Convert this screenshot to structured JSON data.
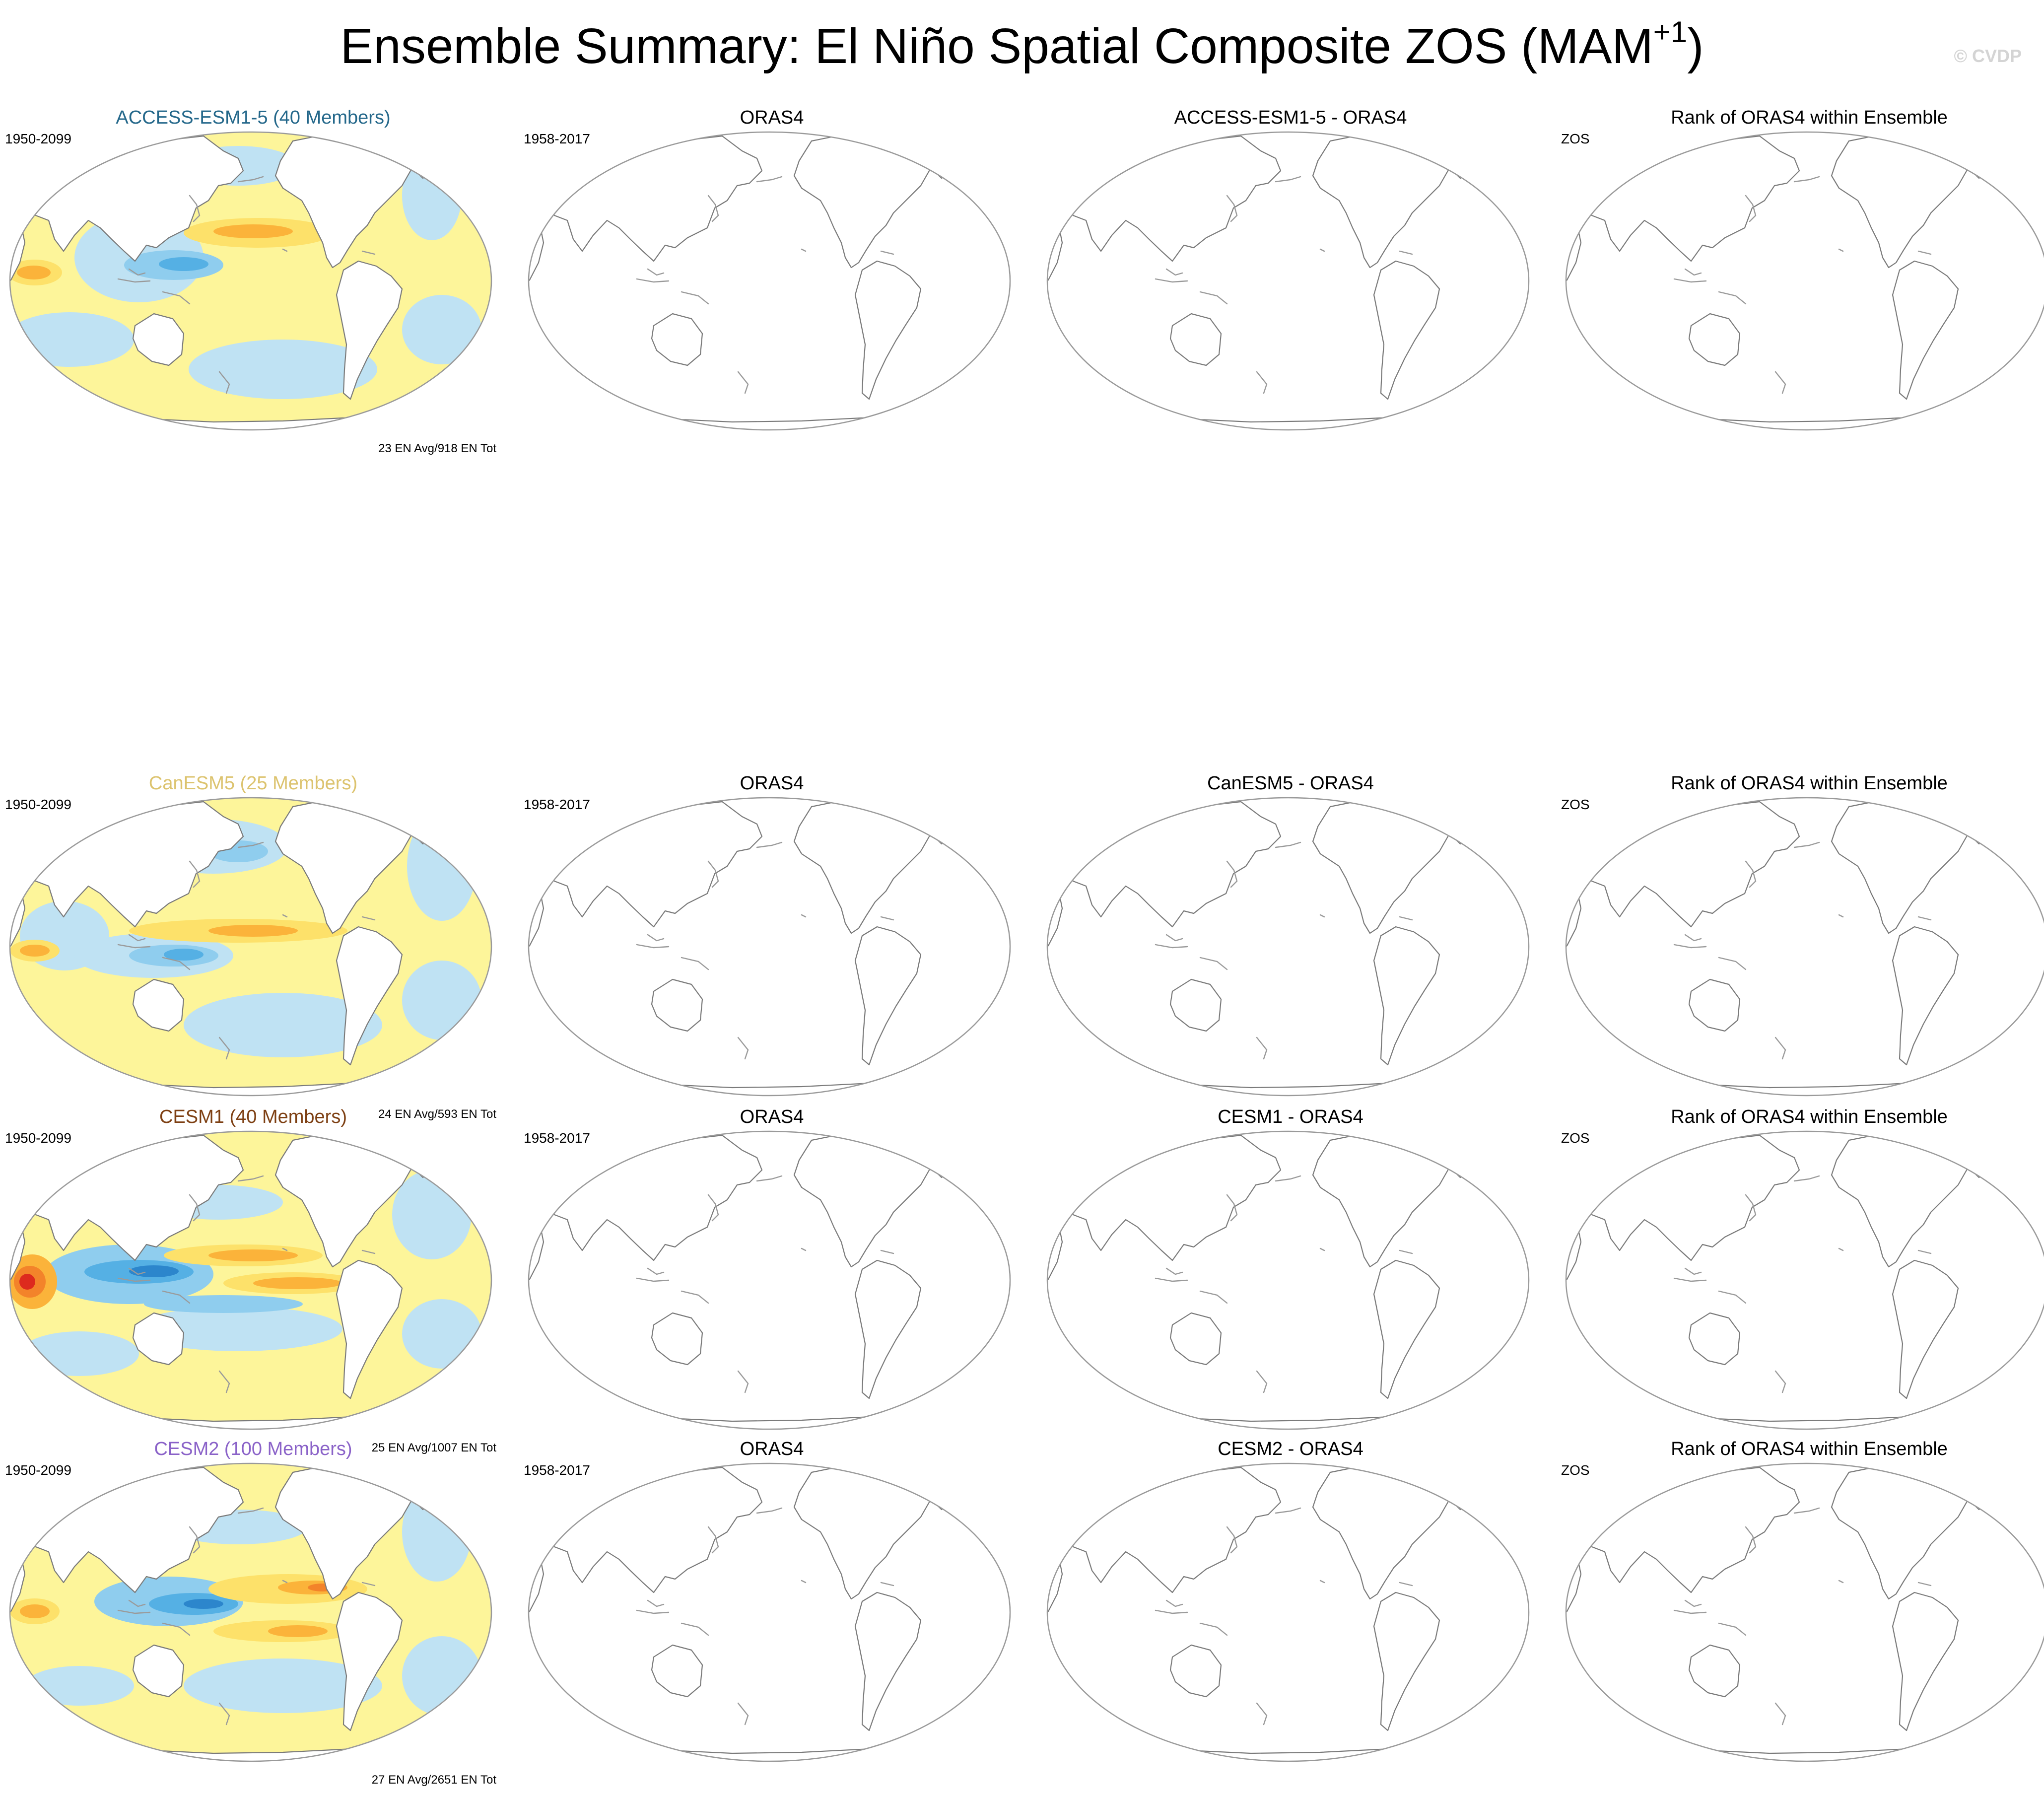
{
  "title": "Ensemble Summary: El Niño Spatial Composite ZOS (MAM",
  "title_sup": "+1",
  "title_close": ")",
  "watermark": "© CVDP",
  "palette": {
    "ocean_base": "#fdf59a",
    "pos1": "#fde16a",
    "pos2": "#fbb33a",
    "pos3": "#f3832a",
    "pos4": "#dd2a1e",
    "neg1": "#bfe2f3",
    "neg2": "#8fcdee",
    "neg3": "#55b0e4",
    "neg4": "#2c86cc",
    "coast": "#7a7a7a"
  },
  "rows": [
    {
      "model": {
        "title": "ACCESS-ESM1-5 (40 Members)",
        "title_color": "#23678a",
        "years": "1950-2099",
        "stat": "23 EN Avg/918 EN Tot",
        "style": "access"
      },
      "obs": {
        "title": "ORAS4",
        "years": "1958-2017"
      },
      "diff": {
        "title": "ACCESS-ESM1-5 - ORAS4"
      },
      "rank": {
        "title": "Rank of ORAS4 within Ensemble",
        "label": "ZOS"
      }
    },
    {
      "model": {
        "title": "CanESM5 (25 Members)",
        "title_color": "#dcc36e",
        "years": "1950-2099",
        "stat": "24 EN Avg/593 EN Tot",
        "style": "canesm"
      },
      "obs": {
        "title": "ORAS4",
        "years": "1958-2017"
      },
      "diff": {
        "title": "CanESM5 - ORAS4"
      },
      "rank": {
        "title": "Rank of ORAS4 within Ensemble",
        "label": "ZOS"
      }
    },
    {
      "model": {
        "title": "CESM1 (40 Members)",
        "title_color": "#7d3f12",
        "years": "1950-2099",
        "stat": "25 EN Avg/1007 EN Tot",
        "style": "cesm1"
      },
      "obs": {
        "title": "ORAS4",
        "years": "1958-2017"
      },
      "diff": {
        "title": "CESM1 - ORAS4"
      },
      "rank": {
        "title": "Rank of ORAS4 within Ensemble",
        "label": "ZOS"
      }
    },
    {
      "model": {
        "title": "CESM2 (100 Members)",
        "title_color": "#8a62c8",
        "years": "1950-2099",
        "stat": "27 EN Avg/2651 EN Tot",
        "style": "cesm2"
      },
      "obs": {
        "title": "ORAS4",
        "years": "1958-2017"
      },
      "diff": {
        "title": "CESM2 - ORAS4"
      },
      "rank": {
        "title": "Rank of ORAS4 within Ensemble",
        "label": "ZOS"
      }
    }
  ]
}
